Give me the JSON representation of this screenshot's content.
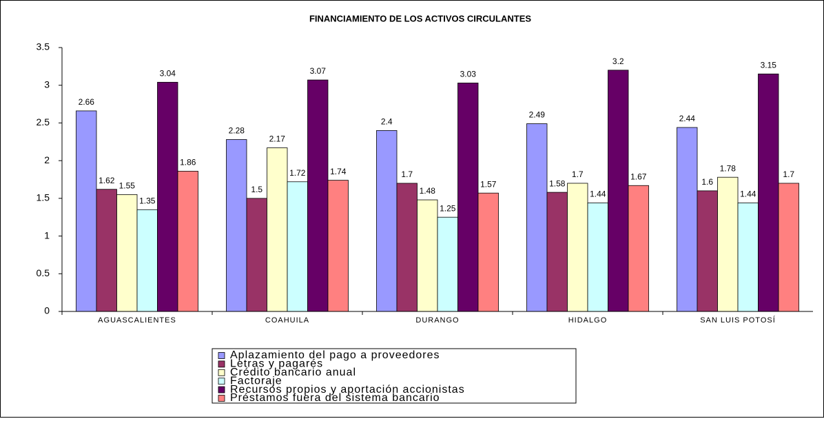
{
  "chart_data": {
    "type": "bar",
    "title": "FINANCIAMIENTO DE LOS ACTIVOS CIRCULANTES",
    "categories": [
      "AGUASCALIENTES",
      "COAHUILA",
      "DURANGO",
      "HIDALGO",
      "SAN LUIS POTOSÍ"
    ],
    "series": [
      {
        "name": "Aplazamiento del pago a proveedores",
        "color": "#9999ff",
        "values": [
          2.66,
          2.28,
          2.4,
          2.49,
          2.44
        ]
      },
      {
        "name": "Letras y pagarés",
        "color": "#993366",
        "values": [
          1.62,
          1.5,
          1.7,
          1.58,
          1.6
        ]
      },
      {
        "name": "Crédito bancario anual",
        "color": "#ffffcc",
        "values": [
          1.55,
          2.17,
          1.48,
          1.7,
          1.78
        ]
      },
      {
        "name": "Factoraje",
        "color": "#ccffff",
        "values": [
          1.35,
          1.72,
          1.25,
          1.44,
          1.44
        ]
      },
      {
        "name": "Recursos propios y aportación accionistas",
        "color": "#660066",
        "values": [
          3.04,
          3.07,
          3.03,
          3.2,
          3.15
        ]
      },
      {
        "name": "Préstamos fuera del sistema bancario",
        "color": "#ff8080",
        "values": [
          1.86,
          1.74,
          1.57,
          1.67,
          1.7
        ]
      }
    ],
    "ylim": [
      0,
      3.5
    ],
    "yticks": [
      0,
      0.5,
      1,
      1.5,
      2,
      2.5,
      3,
      3.5
    ],
    "grid": false,
    "legend": "bottom"
  }
}
